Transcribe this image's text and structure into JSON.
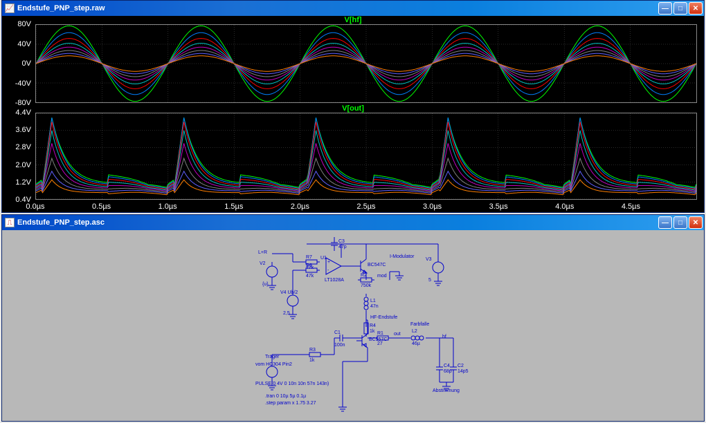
{
  "windows": {
    "raw": {
      "title": "Endstufe_PNP_step.raw"
    },
    "asc": {
      "title": "Endstufe_PNP_step.asc"
    }
  },
  "plot": {
    "background": "#000000",
    "axis_color": "#888888",
    "label_color": "#ffffff",
    "title_color": "#00ff00",
    "grid_color": "#555555",
    "xaxis": {
      "labels": [
        "0.0µs",
        "0.5µs",
        "1.0µs",
        "1.5µs",
        "2.0µs",
        "2.5µs",
        "3.0µs",
        "3.5µs",
        "4.0µs",
        "4.5µs"
      ],
      "min": 0.0,
      "max": 5.0,
      "count": 10
    },
    "trace_colors": [
      "#00ff00",
      "#0080ff",
      "#ff0000",
      "#00c0c0",
      "#c000c0",
      "#808080",
      "#6060ff",
      "#ff7f00"
    ],
    "panes": [
      {
        "title": "V[hf]",
        "ymin": -80,
        "ymax": 80,
        "ylabels": [
          "80V",
          "40V",
          "0V",
          "-40V",
          "-80V"
        ],
        "ytick_count": 5,
        "series": {
          "type": "sine",
          "freq_hz": 1000000.0,
          "phase": 0,
          "amplitudes": [
            78,
            64,
            52,
            42,
            34,
            27,
            21,
            16
          ]
        }
      },
      {
        "title": "V[out]",
        "ymin": 0.4,
        "ymax": 4.4,
        "ylabels": [
          "4.4V",
          "3.6V",
          "2.8V",
          "2.0V",
          "1.2V",
          "0.4V"
        ],
        "ytick_count": 6,
        "series": {
          "type": "detector",
          "freq_hz": 1000000.0,
          "configs": [
            {
              "peak": 4.2,
              "floor": 1.1,
              "decay": 0.78,
              "recover": 0.32
            },
            {
              "peak": 4.2,
              "floor": 1.05,
              "decay": 0.74,
              "recover": 0.3
            },
            {
              "peak": 4.0,
              "floor": 1.0,
              "decay": 0.7,
              "recover": 0.28
            },
            {
              "peak": 3.6,
              "floor": 0.95,
              "decay": 0.66,
              "recover": 0.26
            },
            {
              "peak": 3.0,
              "floor": 0.9,
              "decay": 0.62,
              "recover": 0.24
            },
            {
              "peak": 2.3,
              "floor": 0.84,
              "decay": 0.58,
              "recover": 0.22
            },
            {
              "peak": 1.7,
              "floor": 0.78,
              "decay": 0.55,
              "recover": 0.2
            },
            {
              "peak": 1.3,
              "floor": 0.7,
              "decay": 0.52,
              "recover": 0.18
            }
          ]
        }
      }
    ]
  },
  "schematic": {
    "wire_color": "#0000cc",
    "labels": {
      "modulator": "I-Modulator",
      "opamp": "LT1028A",
      "q1": "BC547C",
      "source1_name": "V2",
      "source1_l": "L+R",
      "source1_val": "{u}",
      "source2_name": "V4 Ub/2",
      "source2_val": "2,5",
      "source3_name": "V3",
      "source3_val": "5",
      "r1": "R7",
      "r1_val": "47k",
      "r2": "R6",
      "r2_val": "47k",
      "c1": "C3",
      "c1_val": "47p",
      "r3": "R2",
      "r3_val": "750k",
      "l1": "L1",
      "l1_val": "47n",
      "node_mod": "mod",
      "sec_hf": "HF-Endstufe",
      "sec_fs": "Farbfalle",
      "q2": "BC557C",
      "r4": "R4",
      "r4_val": "1k",
      "c2": "C1",
      "c2_val": "100n",
      "r5": "R1",
      "r5_val": "27",
      "node_out": "out",
      "l2": "L2",
      "l2_val": "46µ",
      "node_hf": "hf",
      "c4": "C4",
      "c4_val": "68p",
      "c5": "C2",
      "c5_val": "14p5",
      "abst": "Abstimmung",
      "pulse_src": "vom HC304 Pin2",
      "trager": "Träger",
      "pulse": "PULSE(0 4V 0 10n 10n 57n 143n)",
      "spice1": ".tran 0 10µ 5µ 0.1µ",
      "spice2": ".step param x 1.75 3.27"
    }
  }
}
